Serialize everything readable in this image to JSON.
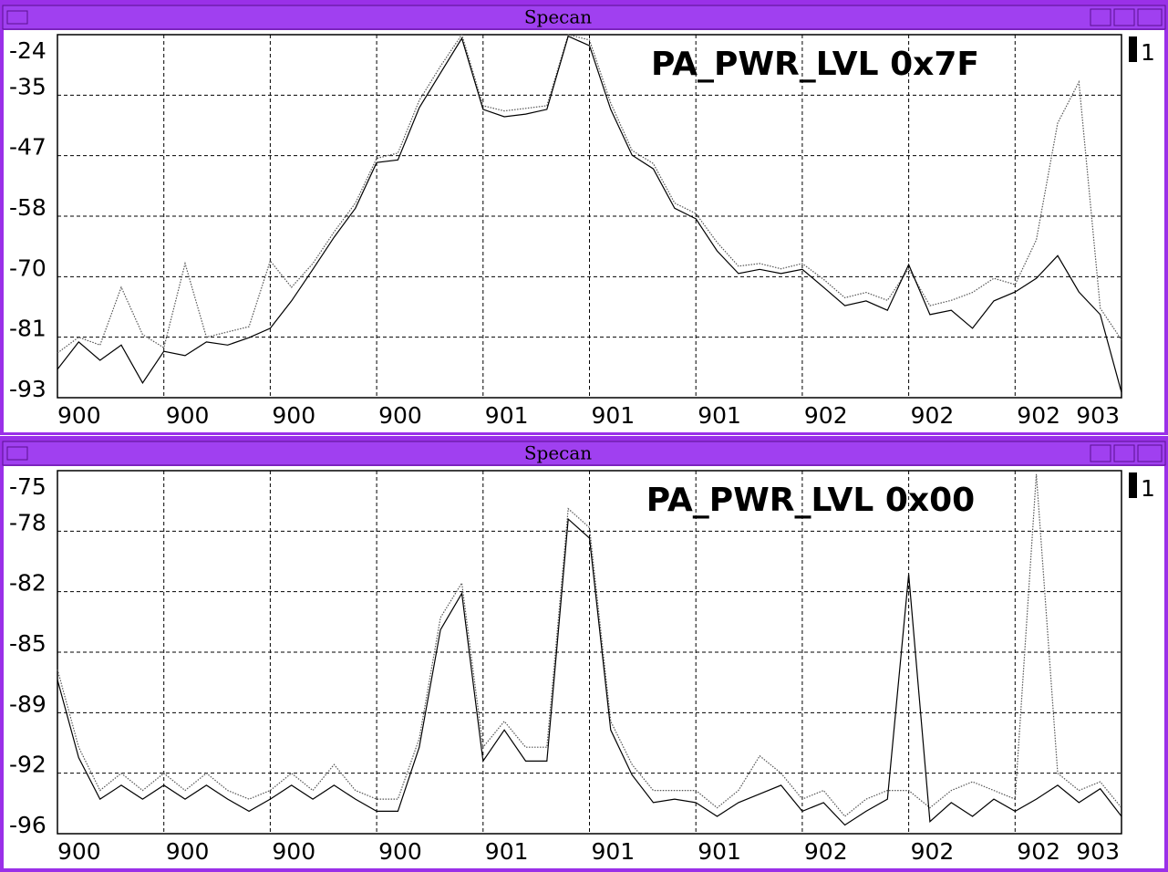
{
  "windows": [
    {
      "title": "Specan"
    },
    {
      "title": "Specan"
    }
  ],
  "chart_data": [
    {
      "type": "line",
      "title": "PA_PWR_LVL 0x7F",
      "trace_label": "1",
      "x": [
        899.5,
        899.566,
        899.632,
        899.698,
        899.764,
        899.83,
        899.896,
        899.962,
        900.028,
        900.094,
        900.16,
        900.226,
        900.292,
        900.358,
        900.424,
        900.49,
        900.556,
        900.622,
        900.688,
        900.754,
        900.82,
        900.886,
        900.952,
        901.018,
        901.084,
        901.15,
        901.216,
        901.282,
        901.348,
        901.414,
        901.48,
        901.546,
        901.612,
        901.678,
        901.744,
        901.81,
        901.876,
        901.942,
        902.008,
        902.074,
        902.14,
        902.206,
        902.272,
        902.338,
        902.404,
        902.47,
        902.536,
        902.602,
        902.668,
        902.734,
        902.8
      ],
      "series": [
        {
          "color": "#000000",
          "style": "solid",
          "values": [
            -87.6,
            -82.4,
            -85.9,
            -83,
            -90.2,
            -84.2,
            -85,
            -82.4,
            -83,
            -81.6,
            -79.8,
            -74.6,
            -68.6,
            -62.5,
            -57,
            -48.3,
            -47.8,
            -37.9,
            -31.3,
            -24.7,
            -38.2,
            -39.6,
            -39.1,
            -38.2,
            -24.3,
            -26.1,
            -38.2,
            -46.9,
            -49.5,
            -57,
            -59,
            -65.1,
            -69.4,
            -68.6,
            -69.4,
            -68.6,
            -72,
            -75.5,
            -74.6,
            -76.4,
            -67.7,
            -77.2,
            -76.4,
            -79.8,
            -74.6,
            -72.9,
            -70.3,
            -66,
            -72.9,
            -77.2,
            -92
          ]
        },
        {
          "color": "#555555",
          "style": "dotted",
          "values": [
            -84.5,
            -81.5,
            -83,
            -72,
            -81,
            -83.5,
            -67.5,
            -81.5,
            -80.5,
            -79.5,
            -67,
            -72,
            -67.5,
            -61.5,
            -56,
            -47.5,
            -46.5,
            -36.5,
            -30,
            -24,
            -37.5,
            -38.5,
            -38,
            -37.5,
            -24,
            -25,
            -37,
            -46,
            -48.5,
            -56,
            -58,
            -63.5,
            -68,
            -67.5,
            -68.5,
            -67.5,
            -70.5,
            -74,
            -73,
            -74.5,
            -68.5,
            -75.5,
            -74.5,
            -73,
            -70.3,
            -71.5,
            -63,
            -40.8,
            -33,
            -76,
            -82
          ]
        }
      ],
      "xlim": [
        899.5,
        902.8
      ],
      "xticks": [
        {
          "value": 899.5,
          "label": "900"
        },
        {
          "value": 899.83,
          "label": "900"
        },
        {
          "value": 900.16,
          "label": "900"
        },
        {
          "value": 900.49,
          "label": "900"
        },
        {
          "value": 900.82,
          "label": "901"
        },
        {
          "value": 901.15,
          "label": "901"
        },
        {
          "value": 901.48,
          "label": "901"
        },
        {
          "value": 901.81,
          "label": "902"
        },
        {
          "value": 902.14,
          "label": "902"
        },
        {
          "value": 902.47,
          "label": "902"
        },
        {
          "value": 902.8,
          "label": "903"
        }
      ],
      "ylim": [
        -93,
        -24
      ],
      "yticks": [
        -93,
        {
          "value": -81.5,
          "label": "-81"
        },
        -70,
        {
          "value": -58.5,
          "label": "-58"
        },
        -47,
        {
          "value": -35.5,
          "label": "-35"
        },
        -24
      ],
      "grid": true
    },
    {
      "type": "line",
      "title": "PA_PWR_LVL 0x00",
      "trace_label": "1",
      "x": [
        899.5,
        899.566,
        899.632,
        899.698,
        899.764,
        899.83,
        899.896,
        899.962,
        900.028,
        900.094,
        900.16,
        900.226,
        900.292,
        900.358,
        900.424,
        900.49,
        900.556,
        900.622,
        900.688,
        900.754,
        900.82,
        900.886,
        900.952,
        901.018,
        901.084,
        901.15,
        901.216,
        901.282,
        901.348,
        901.414,
        901.48,
        901.546,
        901.612,
        901.678,
        901.744,
        901.81,
        901.876,
        901.942,
        902.008,
        902.074,
        902.14,
        902.206,
        902.272,
        902.338,
        902.404,
        902.47,
        902.536,
        902.602,
        902.668,
        902.734,
        902.8
      ],
      "series": [
        {
          "color": "#000000",
          "style": "solid",
          "values": [
            -87.1,
            -91.6,
            -94,
            -93.2,
            -94,
            -93.2,
            -94,
            -93.2,
            -94,
            -94.7,
            -94,
            -93.2,
            -94,
            -93.2,
            -94,
            -94.7,
            -94.7,
            -91,
            -84.2,
            -82.1,
            -91.8,
            -90,
            -91.8,
            -91.8,
            -77.8,
            -78.9,
            -90,
            -92.6,
            -94.2,
            -94,
            -94.2,
            -95,
            -94.2,
            -93.7,
            -93.2,
            -94.7,
            -94.2,
            -95.5,
            -94.7,
            -94,
            -81,
            -95.3,
            -94.2,
            -95,
            -94,
            -94.7,
            -94,
            -93.2,
            -94.2,
            -93.4,
            -95
          ]
        },
        {
          "color": "#555555",
          "style": "dotted",
          "values": [
            -86.5,
            -91,
            -93.5,
            -92.5,
            -93.5,
            -92.5,
            -93.5,
            -92.5,
            -93.5,
            -94,
            -93.5,
            -92.5,
            -93.5,
            -92,
            -93.5,
            -94,
            -94,
            -90.5,
            -83.5,
            -81.5,
            -91,
            -89.5,
            -91,
            -91,
            -77.2,
            -78.3,
            -89.5,
            -92,
            -93.5,
            -93.5,
            -93.5,
            -94.5,
            -93.5,
            -91.5,
            -92.5,
            -94,
            -93.5,
            -95,
            -94,
            -93.5,
            -93.5,
            -94.5,
            -93.5,
            -93,
            -93.5,
            -94,
            -75.2,
            -92.5,
            -93.5,
            -93,
            -94.5
          ]
        }
      ],
      "xlim": [
        899.5,
        902.8
      ],
      "xticks": [
        {
          "value": 899.5,
          "label": "900"
        },
        {
          "value": 899.83,
          "label": "900"
        },
        {
          "value": 900.16,
          "label": "900"
        },
        {
          "value": 900.49,
          "label": "900"
        },
        {
          "value": 900.82,
          "label": "901"
        },
        {
          "value": 901.15,
          "label": "901"
        },
        {
          "value": 901.48,
          "label": "901"
        },
        {
          "value": 901.81,
          "label": "902"
        },
        {
          "value": 902.14,
          "label": "902"
        },
        {
          "value": 902.47,
          "label": "902"
        },
        {
          "value": 902.8,
          "label": "903"
        }
      ],
      "ylim": [
        -96,
        -75
      ],
      "yticks": [
        -96,
        {
          "value": -92.5,
          "label": "-92"
        },
        -89,
        {
          "value": -85.5,
          "label": "-85"
        },
        -82,
        {
          "value": -78.5,
          "label": "-78"
        },
        -75
      ],
      "grid": true
    }
  ]
}
